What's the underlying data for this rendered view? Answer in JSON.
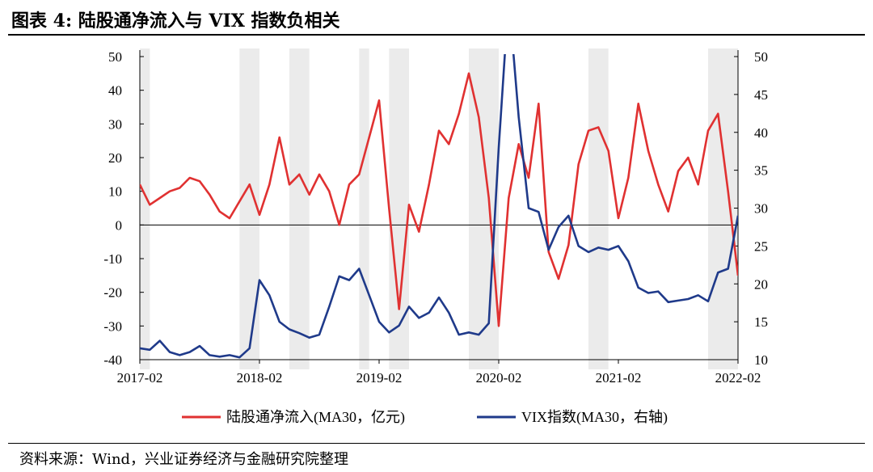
{
  "title": "图表 4:  陆股通净流入与 VIX 指数负相关",
  "source": "资料来源：Wind，兴业证券经济与金融研究院整理",
  "colors": {
    "red": "#E03131",
    "redLight": "#E8787A",
    "blue": "#1F3A8A",
    "blueLight": "#5F72B8",
    "shade": "#EBEBEB",
    "axis": "#000000"
  },
  "chart_data": {
    "type": "line",
    "x_range": [
      "2017-02",
      "2022-02"
    ],
    "x_ticks": [
      "2017-02",
      "2018-02",
      "2019-02",
      "2020-02",
      "2021-02",
      "2022-02"
    ],
    "y_left": {
      "min": -40,
      "max": 50,
      "ticks": [
        50,
        40,
        30,
        20,
        10,
        0,
        -10,
        -20,
        -30,
        -40
      ]
    },
    "y_right": {
      "min": 10,
      "max": 50,
      "ticks": [
        50,
        45,
        40,
        35,
        30,
        25,
        20,
        15,
        10
      ]
    },
    "shaded_periods": [
      [
        "2017-02",
        "2017-03"
      ],
      [
        "2017-12",
        "2018-02"
      ],
      [
        "2018-05",
        "2018-07"
      ],
      [
        "2018-12",
        "2019-01"
      ],
      [
        "2019-03",
        "2019-05"
      ],
      [
        "2019-11",
        "2020-02"
      ],
      [
        "2020-11",
        "2021-01"
      ],
      [
        "2021-11",
        "2022-02"
      ]
    ],
    "series": [
      {
        "name": "陆股通净流入(MA30，亿元)",
        "axis": "left",
        "points": [
          [
            "2017-02-01",
            12
          ],
          [
            "2017-03-01",
            6
          ],
          [
            "2017-04-01",
            8
          ],
          [
            "2017-05-01",
            10
          ],
          [
            "2017-06-01",
            11
          ],
          [
            "2017-07-01",
            14
          ],
          [
            "2017-08-01",
            13
          ],
          [
            "2017-09-01",
            9
          ],
          [
            "2017-10-01",
            4
          ],
          [
            "2017-11-01",
            2
          ],
          [
            "2017-12-01",
            7
          ],
          [
            "2018-01-01",
            12
          ],
          [
            "2018-02-01",
            3
          ],
          [
            "2018-03-01",
            12
          ],
          [
            "2018-04-01",
            26
          ],
          [
            "2018-05-01",
            12
          ],
          [
            "2018-06-01",
            15
          ],
          [
            "2018-07-01",
            9
          ],
          [
            "2018-08-01",
            15
          ],
          [
            "2018-09-01",
            10
          ],
          [
            "2018-10-01",
            0
          ],
          [
            "2018-11-01",
            12
          ],
          [
            "2018-12-01",
            15
          ],
          [
            "2019-01-01",
            26
          ],
          [
            "2019-02-01",
            37
          ],
          [
            "2019-03-01",
            5
          ],
          [
            "2019-04-01",
            -25
          ],
          [
            "2019-05-01",
            6
          ],
          [
            "2019-06-01",
            -2
          ],
          [
            "2019-07-01",
            12
          ],
          [
            "2019-08-01",
            28
          ],
          [
            "2019-09-01",
            24
          ],
          [
            "2019-10-01",
            33
          ],
          [
            "2019-11-01",
            45
          ],
          [
            "2019-12-01",
            32
          ],
          [
            "2020-01-01",
            8
          ],
          [
            "2020-02-01",
            -30
          ],
          [
            "2020-03-01",
            8
          ],
          [
            "2020-04-01",
            24
          ],
          [
            "2020-05-01",
            14
          ],
          [
            "2020-06-01",
            36
          ],
          [
            "2020-07-01",
            -8
          ],
          [
            "2020-08-01",
            -16
          ],
          [
            "2020-09-01",
            -6
          ],
          [
            "2020-10-01",
            18
          ],
          [
            "2020-11-01",
            28
          ],
          [
            "2020-12-01",
            29
          ],
          [
            "2021-01-01",
            22
          ],
          [
            "2021-02-01",
            2
          ],
          [
            "2021-03-01",
            14
          ],
          [
            "2021-04-01",
            36
          ],
          [
            "2021-05-01",
            22
          ],
          [
            "2021-06-01",
            12
          ],
          [
            "2021-07-01",
            4
          ],
          [
            "2021-08-01",
            16
          ],
          [
            "2021-09-01",
            20
          ],
          [
            "2021-10-01",
            12
          ],
          [
            "2021-11-01",
            28
          ],
          [
            "2021-12-01",
            33
          ],
          [
            "2022-01-01",
            10
          ],
          [
            "2022-02-01",
            -15
          ]
        ]
      },
      {
        "name": "VIX指数(MA30，右轴)",
        "axis": "right",
        "points": [
          [
            "2017-02-01",
            11.5
          ],
          [
            "2017-03-01",
            11.3
          ],
          [
            "2017-04-01",
            12.5
          ],
          [
            "2017-05-01",
            11
          ],
          [
            "2017-06-01",
            10.6
          ],
          [
            "2017-07-01",
            11
          ],
          [
            "2017-08-01",
            11.8
          ],
          [
            "2017-09-01",
            10.6
          ],
          [
            "2017-10-01",
            10.4
          ],
          [
            "2017-11-01",
            10.6
          ],
          [
            "2017-12-01",
            10.3
          ],
          [
            "2018-01-01",
            11.5
          ],
          [
            "2018-02-01",
            20.5
          ],
          [
            "2018-03-01",
            18.5
          ],
          [
            "2018-04-01",
            15
          ],
          [
            "2018-05-01",
            14
          ],
          [
            "2018-06-01",
            13.5
          ],
          [
            "2018-07-01",
            12.9
          ],
          [
            "2018-08-01",
            13.3
          ],
          [
            "2018-09-01",
            17
          ],
          [
            "2018-10-01",
            21
          ],
          [
            "2018-11-01",
            20.5
          ],
          [
            "2018-12-01",
            22
          ],
          [
            "2019-01-01",
            18.5
          ],
          [
            "2019-02-01",
            15
          ],
          [
            "2019-03-01",
            13.6
          ],
          [
            "2019-04-01",
            14.5
          ],
          [
            "2019-05-01",
            17
          ],
          [
            "2019-06-01",
            15.5
          ],
          [
            "2019-07-01",
            16.2
          ],
          [
            "2019-08-01",
            18.2
          ],
          [
            "2019-09-01",
            16.2
          ],
          [
            "2019-10-01",
            13.3
          ],
          [
            "2019-11-01",
            13.6
          ],
          [
            "2019-12-01",
            13.3
          ],
          [
            "2020-01-01",
            14.8
          ],
          [
            "2020-02-01",
            38
          ],
          [
            "2020-03-01",
            58
          ],
          [
            "2020-04-01",
            42
          ],
          [
            "2020-05-01",
            30
          ],
          [
            "2020-06-01",
            29.5
          ],
          [
            "2020-07-01",
            24.5
          ],
          [
            "2020-08-01",
            27.5
          ],
          [
            "2020-09-01",
            29
          ],
          [
            "2020-10-01",
            25
          ],
          [
            "2020-11-01",
            24.2
          ],
          [
            "2020-12-01",
            24.8
          ],
          [
            "2021-01-01",
            24.5
          ],
          [
            "2021-02-01",
            25
          ],
          [
            "2021-03-01",
            23
          ],
          [
            "2021-04-01",
            19.5
          ],
          [
            "2021-05-01",
            18.8
          ],
          [
            "2021-06-01",
            19
          ],
          [
            "2021-07-01",
            17.6
          ],
          [
            "2021-08-01",
            17.8
          ],
          [
            "2021-09-01",
            18
          ],
          [
            "2021-10-01",
            18.5
          ],
          [
            "2021-11-01",
            17.7
          ],
          [
            "2021-12-01",
            21.5
          ],
          [
            "2022-01-01",
            22
          ],
          [
            "2022-02-01",
            29
          ]
        ]
      }
    ]
  }
}
